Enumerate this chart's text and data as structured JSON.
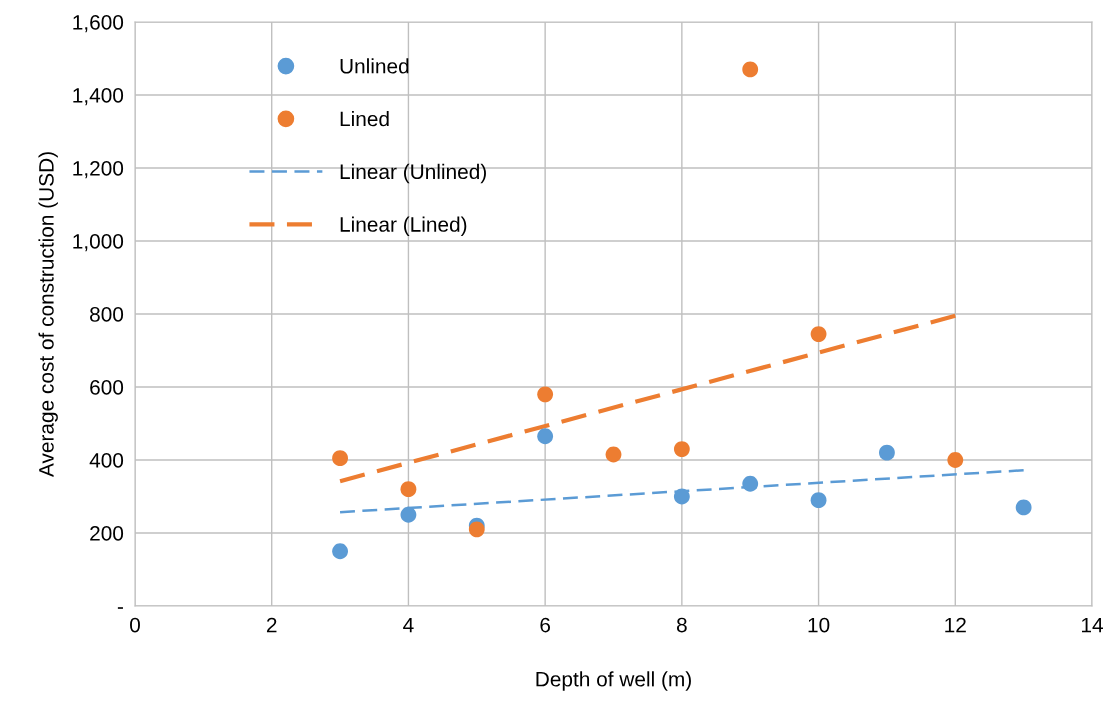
{
  "chart_data": {
    "type": "scatter",
    "xlabel": "Depth of well (m)",
    "ylabel": "Average cost of construction (USD)",
    "xlim": [
      0,
      14
    ],
    "xticks": [
      0,
      2,
      4,
      6,
      8,
      10,
      12,
      14
    ],
    "ylim": [
      0,
      1600
    ],
    "yticks": [
      {
        "value": 0,
        "label": "-"
      },
      {
        "value": 200,
        "label": "200"
      },
      {
        "value": 400,
        "label": "400"
      },
      {
        "value": 600,
        "label": "600"
      },
      {
        "value": 800,
        "label": "800"
      },
      {
        "value": 1000,
        "label": "1,000"
      },
      {
        "value": 1200,
        "label": "1,200"
      },
      {
        "value": 1400,
        "label": "1,400"
      },
      {
        "value": 1600,
        "label": "1,600"
      }
    ],
    "grid": true,
    "legend": "top left",
    "series": [
      {
        "name": "Unlined",
        "marker": "circle",
        "color": "#5b9bd5",
        "x": [
          3,
          4,
          5,
          6,
          8,
          9,
          10,
          11,
          13
        ],
        "values": [
          150,
          250,
          220,
          465,
          300,
          335,
          290,
          420,
          270
        ]
      },
      {
        "name": "Lined",
        "marker": "circle",
        "color": "#ed7d31",
        "x": [
          3,
          4,
          5,
          6,
          7,
          8,
          9,
          10,
          12
        ],
        "values": [
          405,
          320,
          210,
          580,
          415,
          430,
          1470,
          745,
          400
        ]
      },
      {
        "name": "Linear (Unlined)",
        "type": "line",
        "marker": "none",
        "line_style": "dashed",
        "color": "#5b9bd5",
        "x": [
          3,
          13
        ],
        "values": [
          257,
          372
        ]
      },
      {
        "name": "Linear (Lined)",
        "type": "line",
        "marker": "none",
        "line_style": "dashed",
        "color": "#ed7d31",
        "x": [
          3,
          12
        ],
        "values": [
          342,
          795
        ]
      }
    ]
  }
}
